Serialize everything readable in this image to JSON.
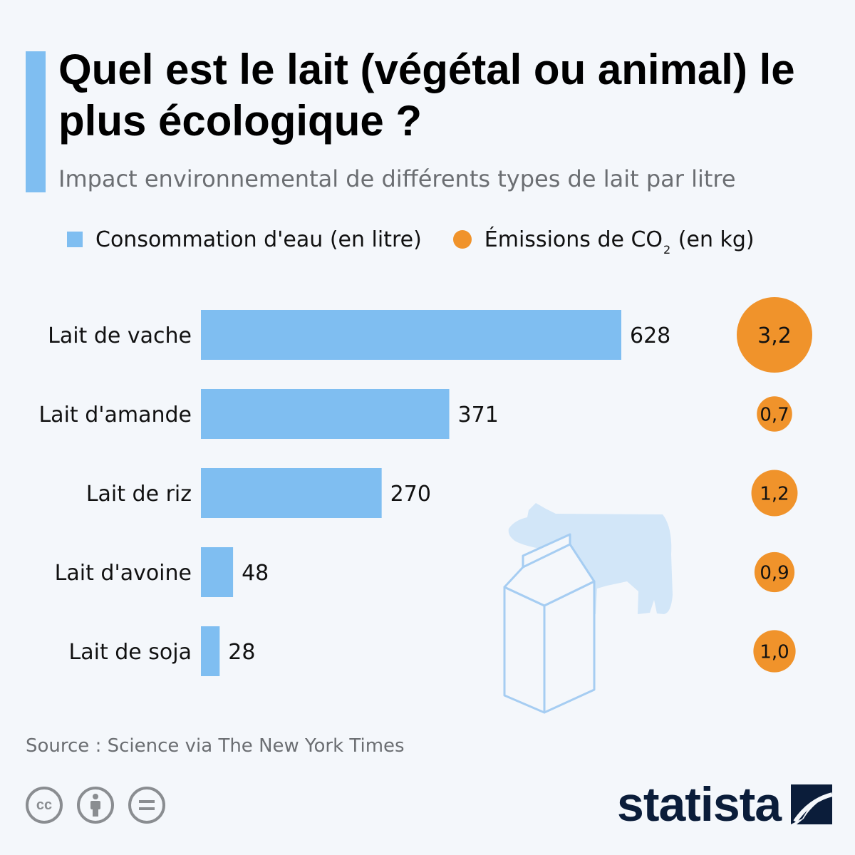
{
  "header": {
    "title": "Quel est le lait (végétal ou animal) le plus écologique ?",
    "subtitle": "Impact environnemental de différents types de lait par litre"
  },
  "legend": {
    "water": "Consommation d'eau (en litre)",
    "co2_prefix": "Émissions de CO",
    "co2_sub": "2",
    "co2_suffix": "(en kg)"
  },
  "colors": {
    "water": "#7fbef1",
    "co2": "#f0932b",
    "illustration": "#d2e6f8",
    "accent": "#7fbef1"
  },
  "chart_data": {
    "type": "bar",
    "orientation": "horizontal",
    "categories": [
      "Lait de vache",
      "Lait d'amande",
      "Lait de riz",
      "Lait d'avoine",
      "Lait de soja"
    ],
    "series": [
      {
        "name": "Consommation d'eau (en litre)",
        "values": [
          628,
          371,
          270,
          48,
          28
        ],
        "labels": [
          "628",
          "371",
          "270",
          "48",
          "28"
        ]
      },
      {
        "name": "Émissions de CO2 (en kg)",
        "values": [
          3.2,
          0.7,
          1.2,
          0.9,
          1.0
        ],
        "labels": [
          "3,2",
          "0,7",
          "1,2",
          "0,9",
          "1,0"
        ]
      }
    ],
    "grid": false
  },
  "footer": {
    "source": "Source : Science via The New York Times",
    "license_icons": [
      "cc-icon",
      "attribution-icon",
      "no-derivatives-icon"
    ],
    "brand": "statista"
  }
}
